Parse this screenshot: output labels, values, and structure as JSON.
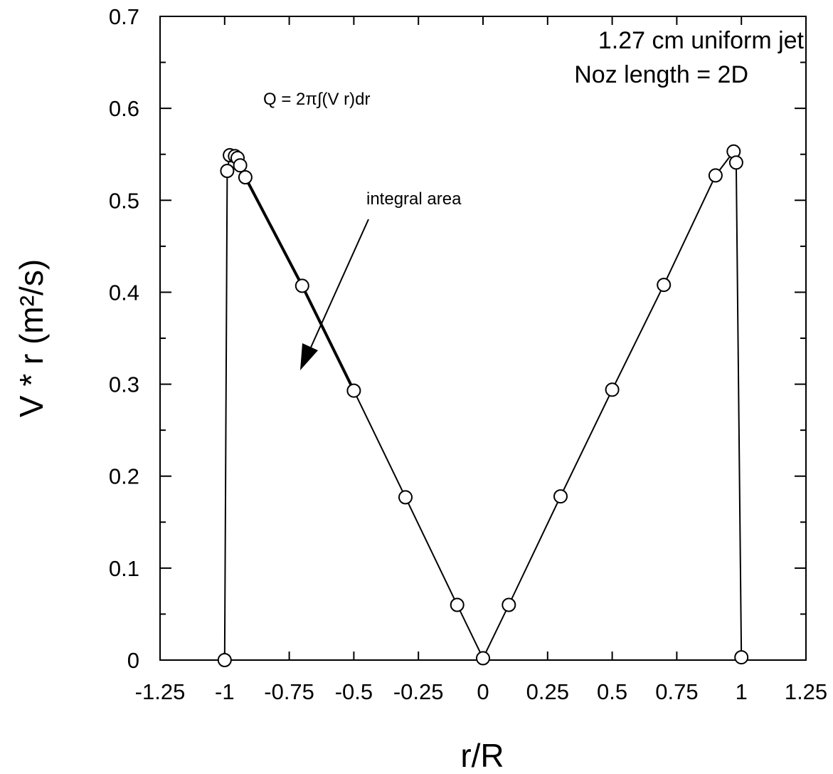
{
  "chart_data": {
    "type": "line",
    "xlabel": "r/R",
    "ylabel": "V * r (m²/s)",
    "xlim": [
      -1.25,
      1.25
    ],
    "ylim": [
      0,
      0.7
    ],
    "x_ticks": [
      "-1.25",
      "-1",
      "-0.75",
      "-0.5",
      "-0.25",
      "0",
      "0.25",
      "0.5",
      "0.75",
      "1",
      "1.25"
    ],
    "y_ticks": [
      "0",
      "0.1",
      "0.2",
      "0.3",
      "0.4",
      "0.5",
      "0.6",
      "0.7"
    ],
    "grid": false,
    "series": [
      {
        "points": [
          {
            "x": -1.0,
            "y": 0.0
          },
          {
            "x": -0.99,
            "y": 0.532
          },
          {
            "x": -0.98,
            "y": 0.549
          },
          {
            "x": -0.96,
            "y": 0.548
          },
          {
            "x": -0.95,
            "y": 0.546
          },
          {
            "x": -0.94,
            "y": 0.538
          },
          {
            "x": -0.92,
            "y": 0.525
          },
          {
            "x": -0.7,
            "y": 0.407
          },
          {
            "x": -0.5,
            "y": 0.293
          },
          {
            "x": -0.3,
            "y": 0.177
          },
          {
            "x": -0.1,
            "y": 0.06
          },
          {
            "x": 0.0,
            "y": 0.002
          },
          {
            "x": 0.1,
            "y": 0.06
          },
          {
            "x": 0.3,
            "y": 0.178
          },
          {
            "x": 0.5,
            "y": 0.294
          },
          {
            "x": 0.7,
            "y": 0.408
          },
          {
            "x": 0.9,
            "y": 0.527
          },
          {
            "x": 0.97,
            "y": 0.553
          },
          {
            "x": 0.98,
            "y": 0.541
          },
          {
            "x": 1.0,
            "y": 0.003
          }
        ]
      }
    ],
    "annotations": {
      "legend_line1": "1.27  cm  uniform  jet",
      "legend_line2": "Noz  length  =  2D",
      "formula": "Q  =  2π∫(V  r)dr",
      "arrow_label": "integral  area"
    }
  }
}
